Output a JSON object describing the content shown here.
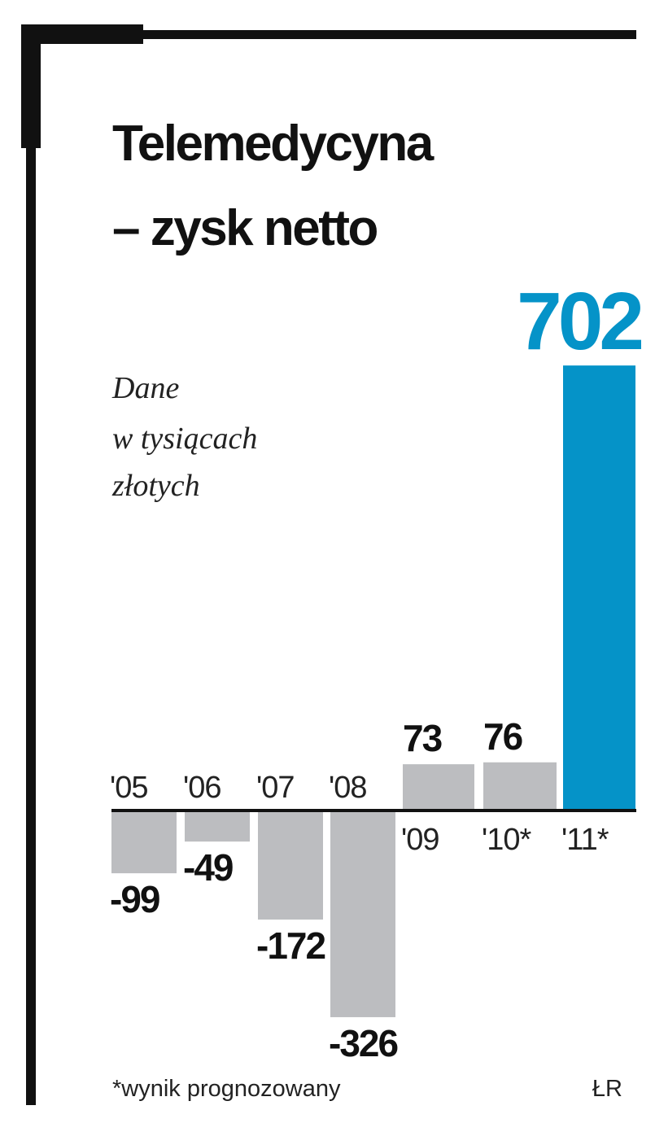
{
  "title_lines": [
    "Telemedycyna",
    "– zysk netto"
  ],
  "unit_lines": [
    "Dane",
    "w tysiącach",
    "złotych"
  ],
  "footnote": "*wynik prognozowany",
  "source": "ŁR",
  "colors": {
    "negative_bar": "#bcbdc0",
    "positive_bar": "#bcbdc0",
    "highlight_bar": "#0593c8",
    "axis": "#111111",
    "frame": "#111111"
  },
  "chart_data": {
    "type": "bar",
    "categories": [
      "'05",
      "'06",
      "'07",
      "'08",
      "'09",
      "'10*",
      "'11*"
    ],
    "values": [
      -99,
      -49,
      -172,
      -326,
      73,
      76,
      702
    ],
    "value_labels": [
      "-99",
      "-49",
      "-172",
      "-326",
      "73",
      "76",
      "702"
    ],
    "highlight_index": 6,
    "title": "Telemedycyna – zysk netto",
    "xlabel": "",
    "ylabel": "",
    "grid": false
  }
}
